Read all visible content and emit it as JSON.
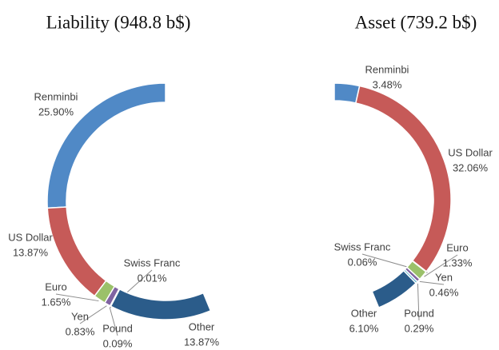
{
  "chart_data": [
    {
      "type": "pie",
      "title": "Liability (948.8 b$)",
      "categories": [
        "Renminbi",
        "US Dollar",
        "Euro",
        "Yen",
        "Pound",
        "Swiss Franc",
        "Other"
      ],
      "values": [
        25.9,
        13.87,
        1.65,
        0.83,
        0.09,
        0.01,
        13.87
      ],
      "value_labels": [
        "25.90%",
        "13.87%",
        "1.65%",
        "0.83%",
        "0.09%",
        "0.01%",
        "13.87%"
      ],
      "colors": [
        "#5089c6",
        "#c65a58",
        "#9bc16a",
        "#8064a2",
        "#4bacc6",
        "#f79646",
        "#2b5c8a"
      ]
    },
    {
      "type": "pie",
      "title": "Asset (739.2 b$)",
      "categories": [
        "Renminbi",
        "US Dollar",
        "Swiss Franc",
        "Euro",
        "Yen",
        "Pound",
        "Other"
      ],
      "values": [
        3.48,
        32.06,
        0.06,
        1.33,
        0.46,
        0.29,
        6.1
      ],
      "value_labels": [
        "3.48%",
        "32.06%",
        "0.06%",
        "1.33%",
        "0.46%",
        "0.29%",
        "6.10%"
      ],
      "colors": [
        "#5089c6",
        "#c65a58",
        "#f79646",
        "#9bc16a",
        "#8064a2",
        "#4bacc6",
        "#2b5c8a"
      ]
    }
  ]
}
